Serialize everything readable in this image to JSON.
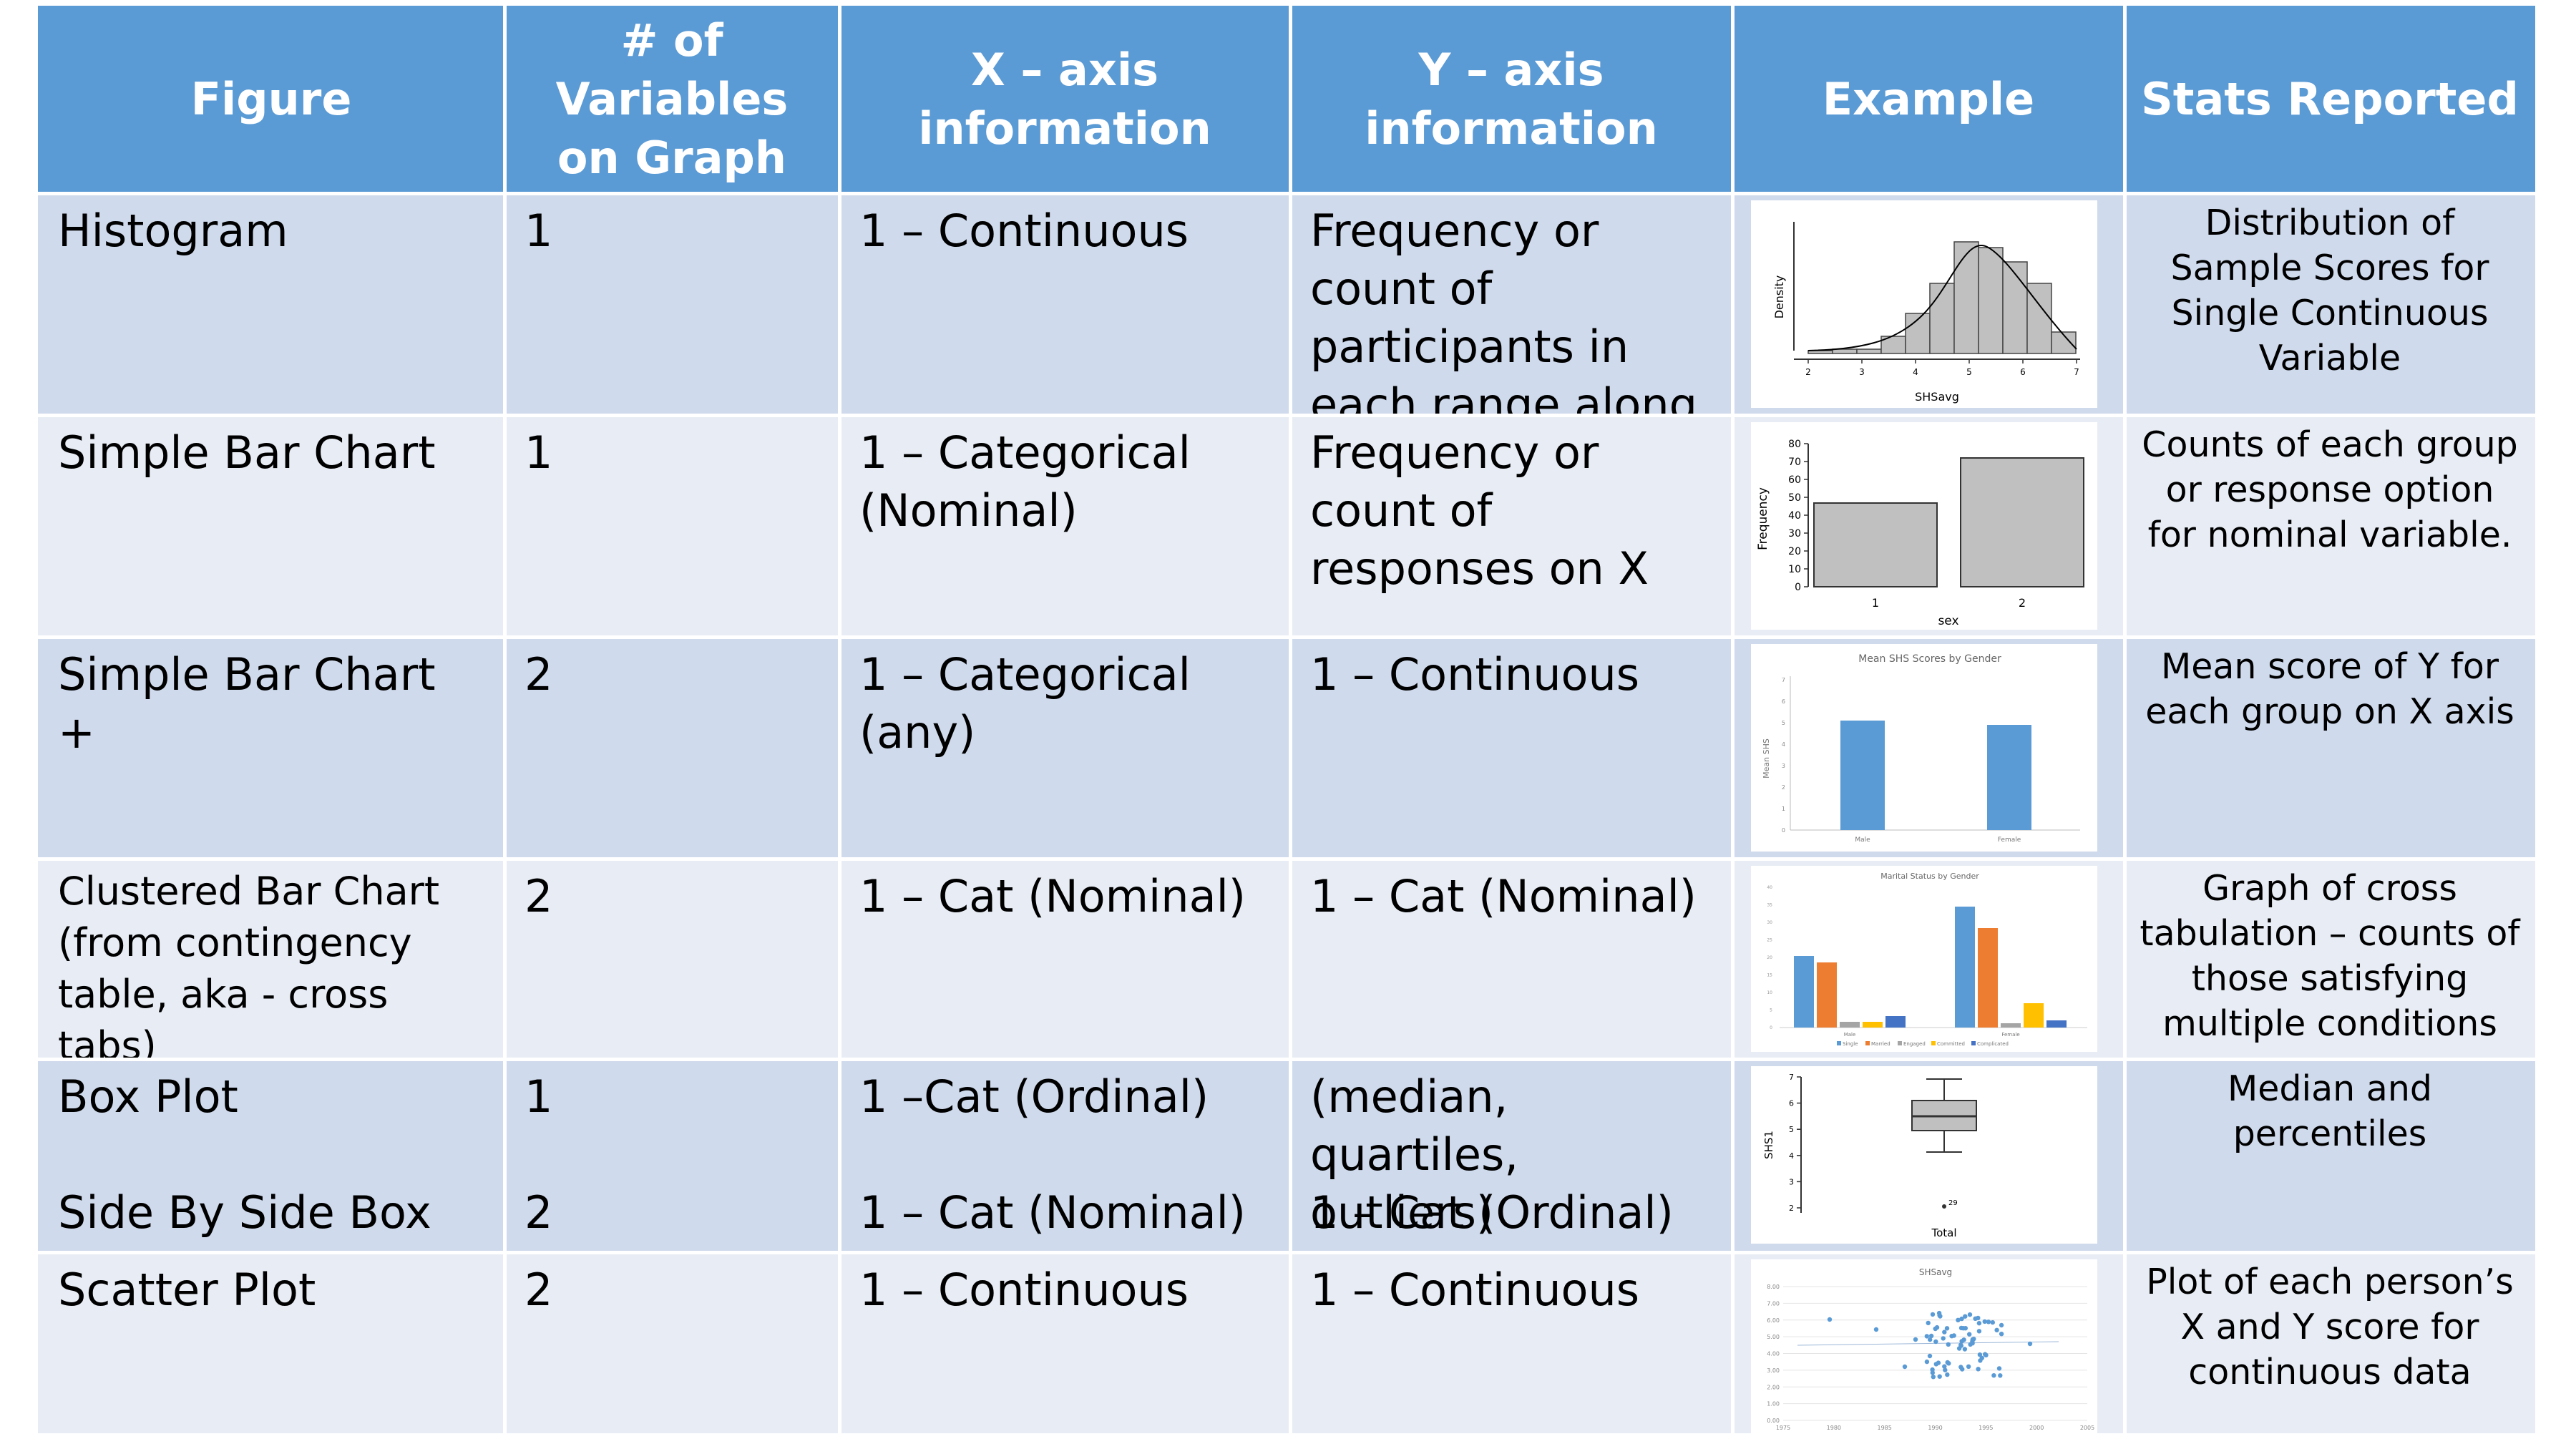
{
  "headers": {
    "figure": "Figure",
    "variables": "# of Variables on Graph",
    "xaxis": "X – axis information",
    "yaxis": "Y – axis information",
    "example": "Example",
    "stats": "Stats Reported"
  },
  "rows": [
    {
      "figure": "Histogram",
      "variables": "1",
      "xaxis": "1 – Continuous",
      "yaxis": "Frequency or count of participants in each range along X",
      "stats": "Distribution of Sample Scores for Single Continuous Variable"
    },
    {
      "figure": "Simple Bar Chart",
      "variables": "1",
      "xaxis": "1 – Categorical (Nominal)",
      "yaxis": "Frequency or count of responses on X",
      "stats": "Counts of each group or response option for nominal variable."
    },
    {
      "figure": "Simple Bar Chart +",
      "variables": "2",
      "xaxis": "1 – Categorical (any)",
      "yaxis": "1 – Continuous",
      "stats": "Mean score of Y for each group on X axis"
    },
    {
      "figure": "Clustered Bar Chart (from contingency table, aka - cross tabs)",
      "variables": "2",
      "xaxis": "1 – Cat (Nominal)",
      "yaxis": "1 – Cat (Nominal)",
      "stats": "Graph of cross tabulation – counts of those satisfying multiple conditions"
    },
    {
      "figure_a": "Box Plot",
      "figure_b": "Side By Side Box Plot",
      "variables_a": "1",
      "variables_b": "2",
      "xaxis_a": "1 –Cat (Ordinal)",
      "xaxis_b": "1 – Cat (Nominal)",
      "yaxis_a": "(median, quartiles, outliers)",
      "yaxis_b": "1 – Cat (Ordinal)",
      "stats": "Median and percentiles"
    },
    {
      "figure": "Scatter Plot",
      "variables": "2",
      "xaxis": "1 – Continuous",
      "yaxis": "1 – Continuous",
      "stats": "Plot of each person’s X and Y score for continuous data"
    }
  ],
  "examples": {
    "histogram": {
      "ylabel": "Density",
      "xlabel": "SHSavg",
      "ticks": [
        "2",
        "3",
        "4",
        "5",
        "6",
        "7"
      ]
    },
    "simple_bar": {
      "ylabel": "Frequency",
      "xlabel": "sex",
      "yticks": [
        "80",
        "70",
        "60",
        "50",
        "40",
        "30",
        "20",
        "10",
        "0"
      ],
      "categories": [
        "1",
        "2"
      ]
    },
    "mean_bar": {
      "title": "Mean SHS Scores by Gender",
      "ylabel": "Mean SHS",
      "categories": [
        "Male",
        "Female"
      ],
      "yticks": [
        "7",
        "6",
        "5",
        "4",
        "3",
        "2",
        "1",
        "0"
      ]
    },
    "clustered_bar": {
      "title": "Marital Status by Gender",
      "categories": [
        "Male",
        "Female"
      ],
      "legend": [
        "Single",
        "Married",
        "Engaged",
        "Committed",
        "Complicated"
      ],
      "yticks": [
        "40",
        "35",
        "30",
        "25",
        "20",
        "15",
        "10",
        "5",
        "0"
      ]
    },
    "box_plot": {
      "ylabel": "SHS1",
      "xlabel": "Total",
      "yticks": [
        "7",
        "6",
        "5",
        "4",
        "3",
        "2"
      ],
      "outlier_label": "29"
    },
    "scatter": {
      "title": "SHSavg",
      "yticks": [
        "8.00",
        "7.00",
        "6.00",
        "5.00",
        "4.00",
        "3.00",
        "2.00",
        "1.00",
        "0.00"
      ],
      "xticks": [
        "1975",
        "1980",
        "1985",
        "1990",
        "1995",
        "2000",
        "2005"
      ]
    }
  },
  "colors": {
    "header_bg": "#5b9bd5",
    "row_dark": "#cfdaec",
    "row_light": "#e8edf5",
    "chart_blue": "#5b9bd5",
    "chart_orange": "#ed7d31",
    "chart_gray": "#a5a5a5",
    "chart_yellow": "#ffc000",
    "chart_darkblue": "#4472c4",
    "histogram_bar": "#c0c0c0"
  }
}
